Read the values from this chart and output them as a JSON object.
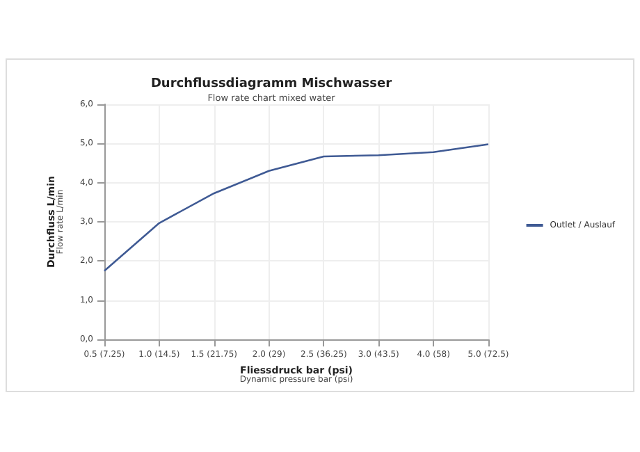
{
  "chart_data": {
    "type": "line",
    "title": "Durchflussdiagramm Mischwasser",
    "subtitle": "Flow rate chart mixed water",
    "xlabel": "Fliessdruck bar (psi)\nDynamic pressure bar (psi)",
    "ylabel": "Durchfluss L/min\nFlow rate L/min",
    "categories": [
      "0.5 (7.25)",
      "1.0 (14.5)",
      "1.5 (21.75)",
      "2.0 (29)",
      "2.5 (36.25)",
      "3.0 (43.5)",
      "4.0 (58)",
      "5.0 (72.5)"
    ],
    "series": [
      {
        "name": "Outlet / Auslauf",
        "color": "#3f5a94",
        "values": [
          1.75,
          2.97,
          3.73,
          4.3,
          4.67,
          4.7,
          4.78,
          4.98
        ]
      }
    ],
    "ylim": [
      0,
      6
    ],
    "yticks": [
      {
        "value": 0,
        "label": "0,0"
      },
      {
        "value": 1,
        "label": "1,0"
      },
      {
        "value": 2,
        "label": "2,0"
      },
      {
        "value": 3,
        "label": "3,0"
      },
      {
        "value": 4,
        "label": "4,0"
      },
      {
        "value": 5,
        "label": "5,0"
      },
      {
        "value": 6,
        "label": "6,0"
      }
    ],
    "grid": true,
    "legend": "right",
    "marker": "none",
    "line_style": "solid"
  }
}
